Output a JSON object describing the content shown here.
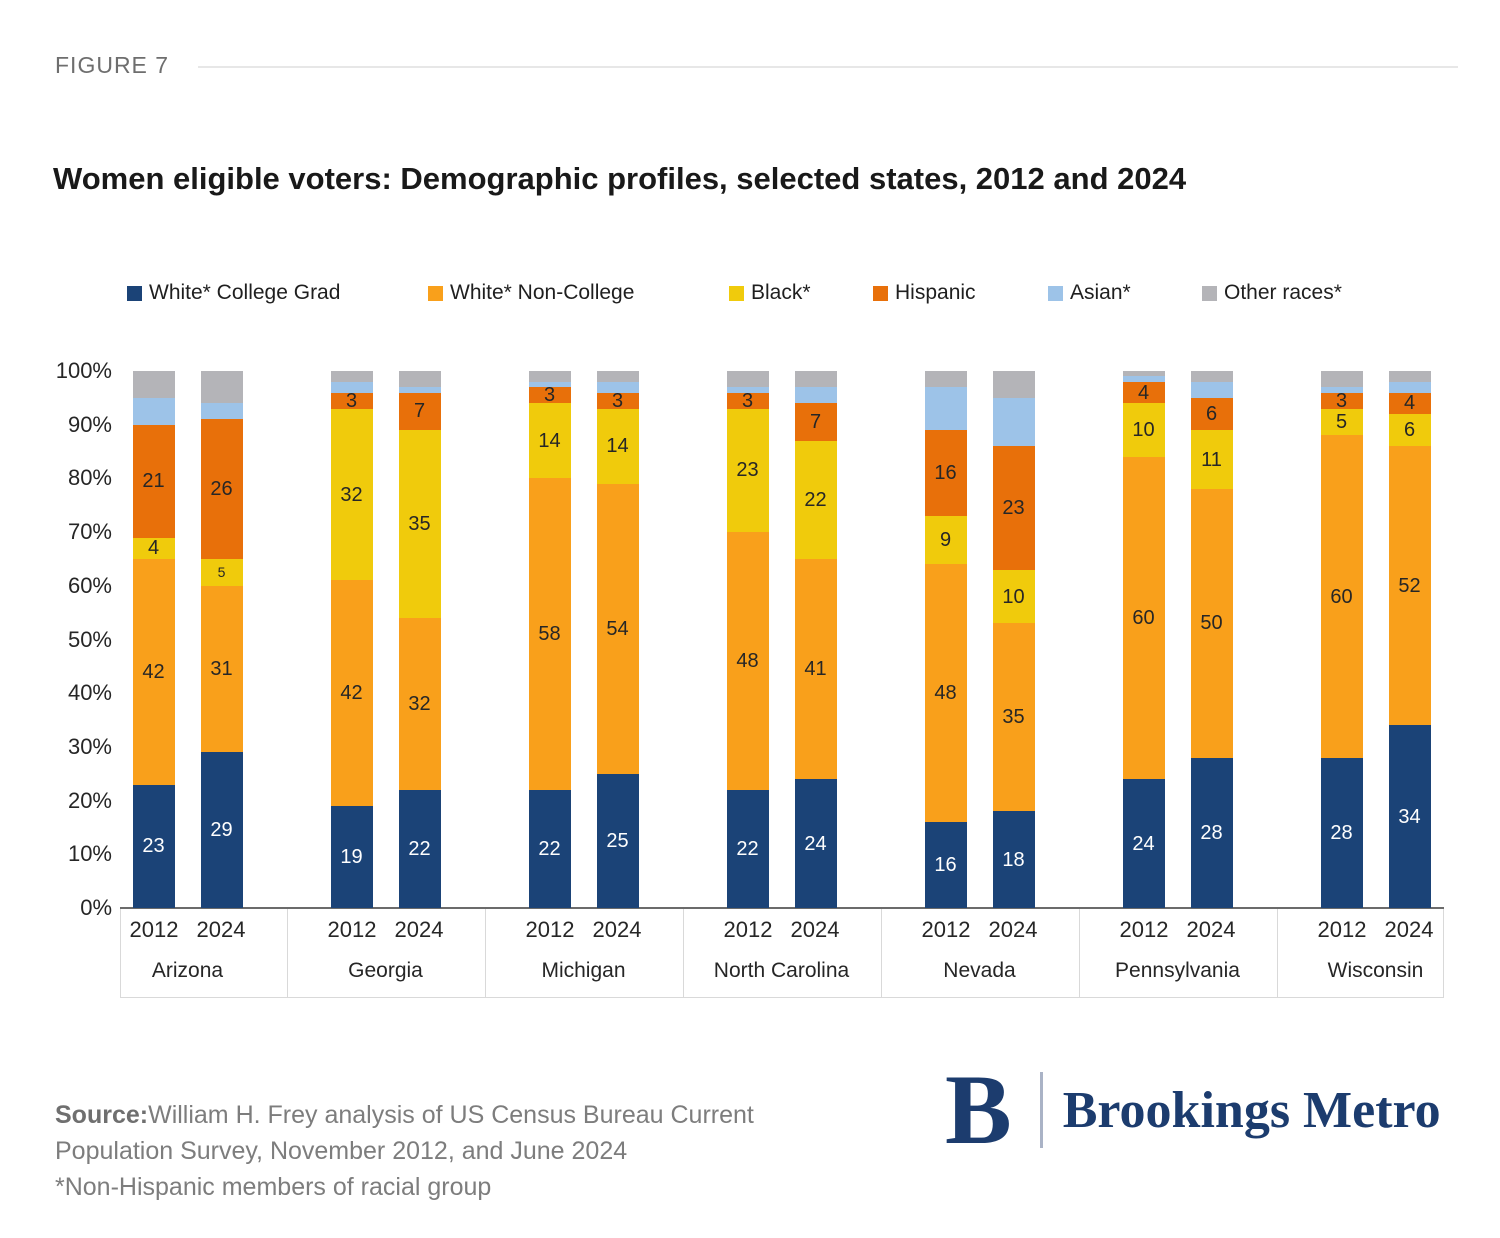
{
  "figure_label": "FIGURE 7",
  "title": "Women eligible voters: Demographic profiles, selected states, 2012 and 2024",
  "chart_data": {
    "type": "bar",
    "stacked": true,
    "unit": "percent",
    "ylim": [
      0,
      100
    ],
    "y_ticks": [
      "100%",
      "90%",
      "80%",
      "70%",
      "60%",
      "50%",
      "40%",
      "30%",
      "20%",
      "10%",
      "0%"
    ],
    "legend_position": "top",
    "grid": false,
    "series": [
      "White* College Grad",
      "White* Non-College",
      "Black*",
      "Hispanic",
      "Asian*",
      "Other races*"
    ],
    "colors": [
      "#1b4377",
      "#f9a01b",
      "#f0cb0c",
      "#e8700a",
      "#9dc3e8",
      "#b4b4b8"
    ],
    "label_text_colors": [
      "#ffffff",
      "#262626",
      "#262626",
      "#262626",
      "",
      ""
    ],
    "groups": [
      {
        "state": "Arizona",
        "bars": [
          {
            "year": "2012",
            "values": [
              23,
              42,
              4,
              21,
              5,
              5
            ],
            "labels": [
              "23",
              "42",
              "4",
              "21",
              "",
              ""
            ]
          },
          {
            "year": "2024",
            "values": [
              29,
              31,
              5,
              26,
              3,
              6
            ],
            "labels": [
              "29",
              "31",
              "5",
              "26",
              "",
              ""
            ],
            "small_labels": [
              2
            ]
          }
        ]
      },
      {
        "state": "Georgia",
        "bars": [
          {
            "year": "2012",
            "values": [
              19,
              42,
              32,
              3,
              2,
              2
            ],
            "labels": [
              "19",
              "42",
              "32",
              "3",
              "",
              ""
            ]
          },
          {
            "year": "2024",
            "values": [
              22,
              32,
              35,
              7,
              1,
              3
            ],
            "labels": [
              "22",
              "32",
              "35",
              "7",
              "",
              ""
            ]
          }
        ]
      },
      {
        "state": "Michigan",
        "bars": [
          {
            "year": "2012",
            "values": [
              22,
              58,
              14,
              3,
              1,
              2
            ],
            "labels": [
              "22",
              "58",
              "14",
              "3",
              "",
              ""
            ]
          },
          {
            "year": "2024",
            "values": [
              25,
              54,
              14,
              3,
              2,
              2
            ],
            "labels": [
              "25",
              "54",
              "14",
              "3",
              "",
              ""
            ]
          }
        ]
      },
      {
        "state": "North Carolina",
        "bars": [
          {
            "year": "2012",
            "values": [
              22,
              48,
              23,
              3,
              1,
              3
            ],
            "labels": [
              "22",
              "48",
              "23",
              "3",
              "",
              ""
            ]
          },
          {
            "year": "2024",
            "values": [
              24,
              41,
              22,
              7,
              3,
              3
            ],
            "labels": [
              "24",
              "41",
              "22",
              "7",
              "",
              ""
            ]
          }
        ]
      },
      {
        "state": "Nevada",
        "bars": [
          {
            "year": "2012",
            "values": [
              16,
              48,
              9,
              16,
              8,
              3
            ],
            "labels": [
              "16",
              "48",
              "9",
              "16",
              "",
              ""
            ]
          },
          {
            "year": "2024",
            "values": [
              18,
              35,
              10,
              23,
              9,
              5
            ],
            "labels": [
              "18",
              "35",
              "10",
              "23",
              "",
              ""
            ]
          }
        ]
      },
      {
        "state": "Pennsylvania",
        "bars": [
          {
            "year": "2012",
            "values": [
              24,
              60,
              10,
              4,
              1,
              1
            ],
            "labels": [
              "24",
              "60",
              "10",
              "4",
              "",
              ""
            ]
          },
          {
            "year": "2024",
            "values": [
              28,
              50,
              11,
              6,
              3,
              2
            ],
            "labels": [
              "28",
              "50",
              "11",
              "6",
              "",
              ""
            ]
          }
        ]
      },
      {
        "state": "Wisconsin",
        "bars": [
          {
            "year": "2012",
            "values": [
              28,
              60,
              5,
              3,
              1,
              3
            ],
            "labels": [
              "28",
              "60",
              "5",
              "3",
              "",
              ""
            ]
          },
          {
            "year": "2024",
            "values": [
              34,
              52,
              6,
              4,
              2,
              2
            ],
            "labels": [
              "34",
              "52",
              "6",
              "4",
              "",
              ""
            ]
          }
        ]
      }
    ]
  },
  "source": {
    "prefix": "Source:",
    "line1": "William H. Frey analysis of US Census Bureau Current",
    "line2": "Population Survey, November 2012, and June 2024",
    "line3": "*Non-Hispanic members of racial group"
  },
  "logo": {
    "mark": "B",
    "text": "Brookings Metro"
  }
}
